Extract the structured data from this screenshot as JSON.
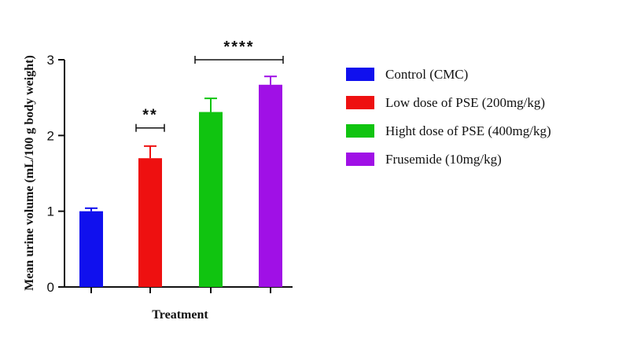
{
  "chart_data": {
    "type": "bar",
    "xlabel": "Treatment",
    "ylabel": "Mean urine volume (mL/100 g body weight)",
    "ylim": [
      0,
      3
    ],
    "yticks": [
      "0",
      "1",
      "2",
      "3"
    ],
    "grid": false,
    "legend_position": "right",
    "series": [
      {
        "name": "Control (CMC)",
        "value": 1.0,
        "error": 0.04,
        "color": "#1010ee"
      },
      {
        "name": "Low dose of PSE (200mg/kg)",
        "value": 1.7,
        "error": 0.16,
        "color": "#ee1010"
      },
      {
        "name": "Hight dose of PSE (400mg/kg)",
        "value": 2.31,
        "error": 0.18,
        "color": "#10c410"
      },
      {
        "name": "Frusemide (10mg/kg)",
        "value": 2.67,
        "error": 0.11,
        "color": "#a010e6"
      }
    ],
    "annotations": [
      {
        "label": "**",
        "from_bar": 1,
        "to_bar": 1,
        "level": 2.1
      },
      {
        "label": "****",
        "from_bar": 2,
        "to_bar": 3,
        "level": 3.0
      }
    ]
  }
}
